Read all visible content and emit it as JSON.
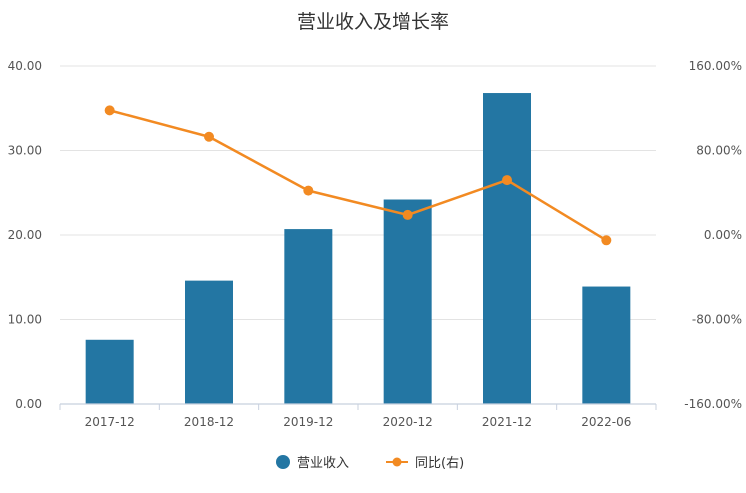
{
  "chart_data": {
    "type": "bar+line",
    "title": "营业收入及增长率",
    "categories": [
      "2017-12",
      "2018-12",
      "2019-12",
      "2020-12",
      "2021-12",
      "2022-06"
    ],
    "series": [
      {
        "name": "营业收入",
        "type": "bar",
        "axis": "left",
        "color": "#2376a3",
        "values": [
          7.6,
          14.6,
          20.7,
          24.2,
          36.8,
          13.9
        ]
      },
      {
        "name": "同比(右)",
        "type": "line",
        "axis": "right",
        "color": "#f28a22",
        "values": [
          118.0,
          93.0,
          42.0,
          19.0,
          52.0,
          -5.0
        ]
      }
    ],
    "left_axis": {
      "range": [
        0,
        40
      ],
      "ticks": [
        0,
        10,
        20,
        30,
        40
      ],
      "tick_labels": [
        "0.00",
        "10.00",
        "20.00",
        "30.00",
        "40.00"
      ]
    },
    "right_axis": {
      "range": [
        -160,
        160
      ],
      "ticks": [
        -160,
        -80,
        0,
        80,
        160
      ],
      "tick_labels": [
        "-160.00%",
        "-80.00%",
        "0.00%",
        "80.00%",
        "160.00%"
      ]
    },
    "grid": true,
    "legend_position": "bottom-center"
  }
}
